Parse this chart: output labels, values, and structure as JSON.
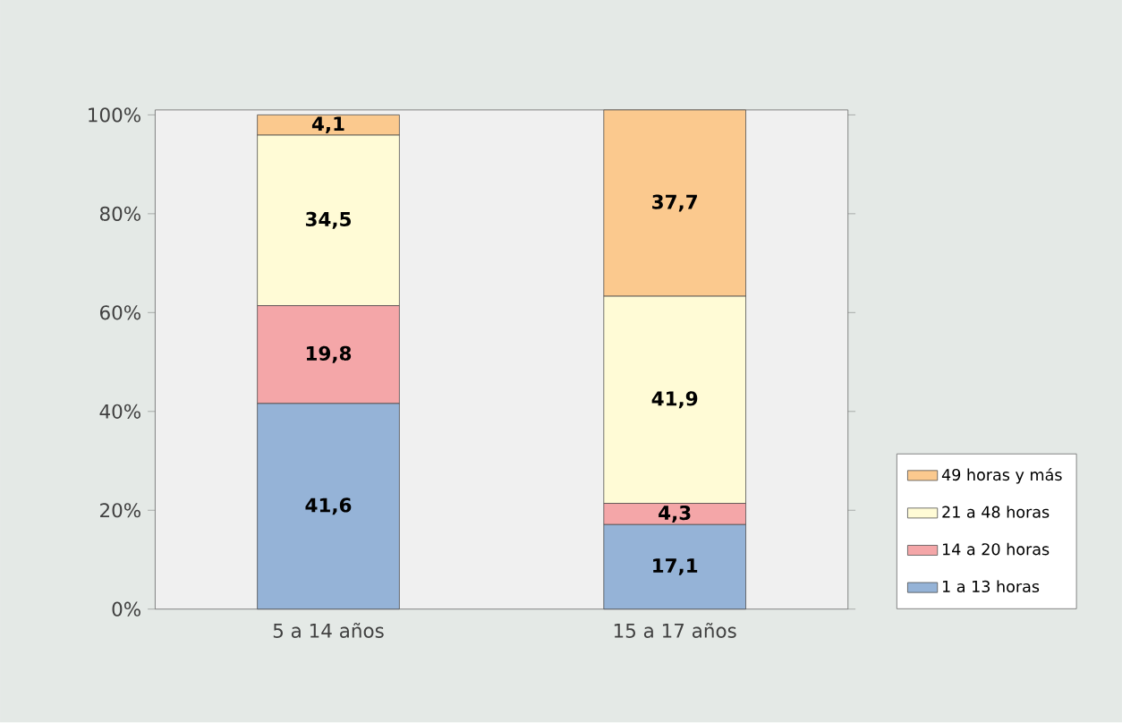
{
  "chart_data": {
    "type": "bar",
    "stacked": true,
    "categories": [
      "5 a 14 años",
      "15 a 17 años"
    ],
    "series": [
      {
        "name": "1 a 13 horas",
        "color": "#95b3d7",
        "values": [
          41.6,
          17.1
        ],
        "value_labels": [
          "41,6",
          "17,1"
        ]
      },
      {
        "name": "14 a 20 horas",
        "color": "#f4a6a8",
        "values": [
          19.8,
          4.3
        ],
        "value_labels": [
          "19,8",
          "4,3"
        ]
      },
      {
        "name": "21 a 48 horas",
        "color": "#fffbd6",
        "values": [
          34.5,
          41.9
        ],
        "value_labels": [
          "34,5",
          "41,9"
        ]
      },
      {
        "name": "49 horas y más",
        "color": "#fbc98e",
        "values": [
          4.1,
          37.7
        ],
        "value_labels": [
          "4,1",
          "37,7"
        ]
      }
    ],
    "ylim": [
      0,
      101
    ],
    "yticks": [
      {
        "value": 0,
        "label": "0%"
      },
      {
        "value": 20,
        "label": "20%"
      },
      {
        "value": 40,
        "label": "40%"
      },
      {
        "value": 60,
        "label": "60%"
      },
      {
        "value": 80,
        "label": "80%"
      },
      {
        "value": 100,
        "label": "100%"
      }
    ],
    "legend": "right"
  }
}
